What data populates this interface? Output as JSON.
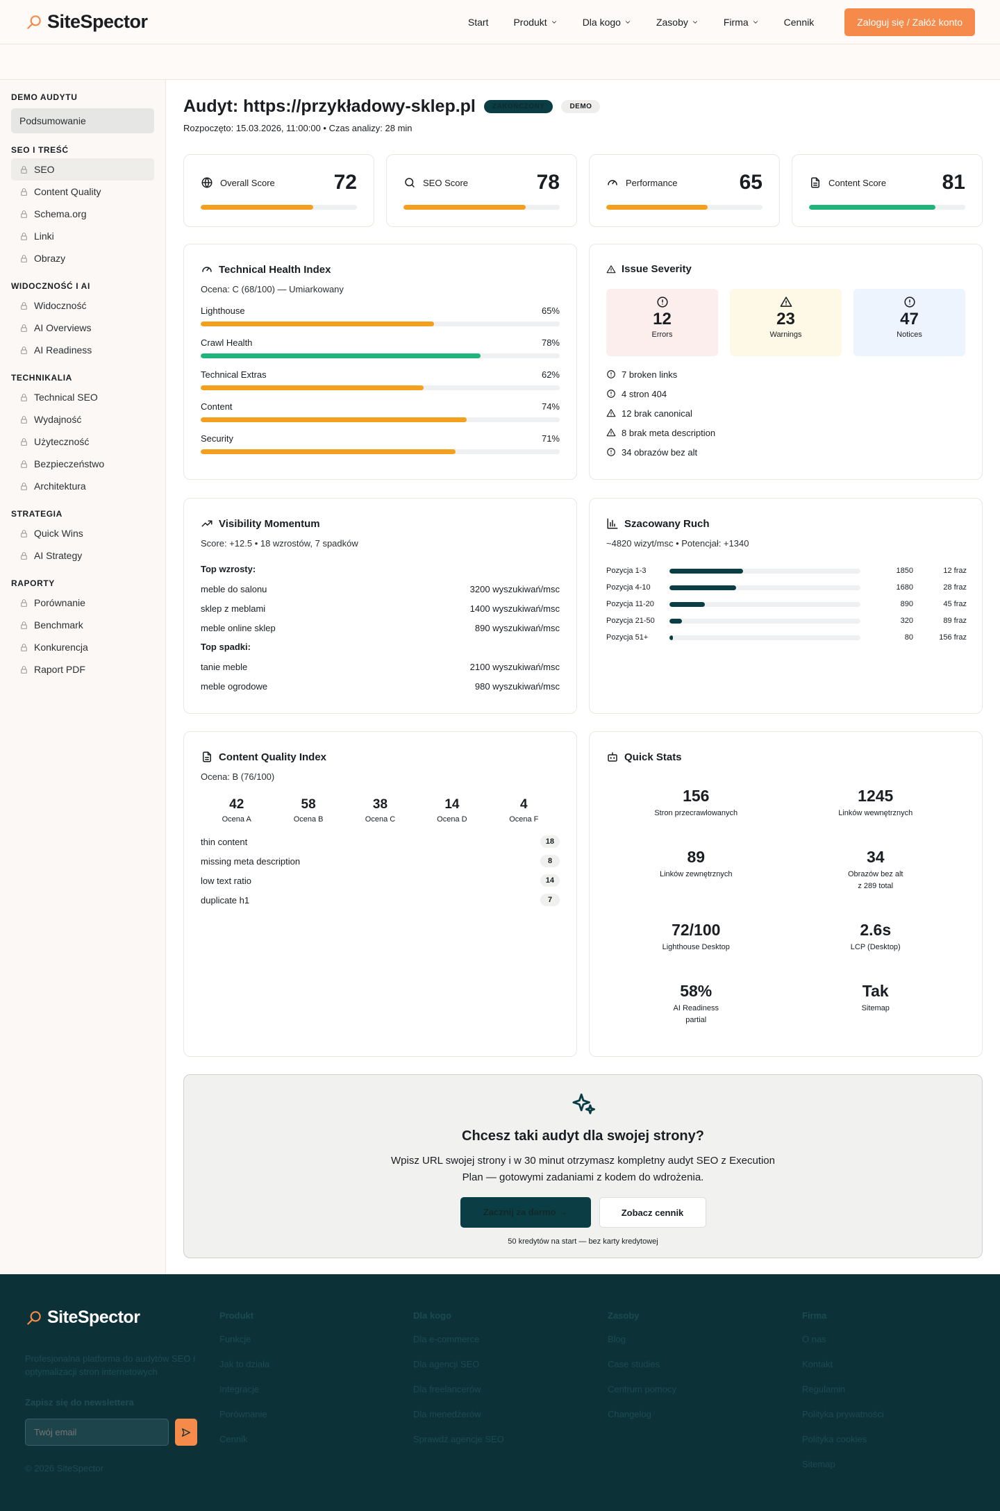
{
  "header": {
    "logo": "SiteSpector",
    "nav": [
      {
        "label": "Start"
      },
      {
        "label": "Produkt",
        "dropdown": true
      },
      {
        "label": "Dla kogo",
        "dropdown": true
      },
      {
        "label": "Zasoby",
        "dropdown": true
      },
      {
        "label": "Firma",
        "dropdown": true
      },
      {
        "label": "Cennik"
      }
    ],
    "cta": "Zaloguj się / Załóż konto"
  },
  "sidebar": {
    "groups": [
      {
        "title": "DEMO AUDYTU",
        "items": [
          {
            "label": "Podsumowanie",
            "active": true
          }
        ]
      },
      {
        "title": "SEO I TREŚĆ",
        "items": [
          {
            "label": "SEO",
            "locked": true,
            "highlighted": true
          },
          {
            "label": "Content Quality",
            "locked": true
          },
          {
            "label": "Schema.org",
            "locked": true
          },
          {
            "label": "Linki",
            "locked": true
          },
          {
            "label": "Obrazy",
            "locked": true
          }
        ]
      },
      {
        "title": "WIDOCZNOŚĆ I AI",
        "items": [
          {
            "label": "Widoczność",
            "locked": true
          },
          {
            "label": "AI Overviews",
            "locked": true
          },
          {
            "label": "AI Readiness",
            "locked": true
          }
        ]
      },
      {
        "title": "TECHNIKALIA",
        "items": [
          {
            "label": "Technical SEO",
            "locked": true
          },
          {
            "label": "Wydajność",
            "locked": true
          },
          {
            "label": "Użyteczność",
            "locked": true
          },
          {
            "label": "Bezpieczeństwo",
            "locked": true
          },
          {
            "label": "Architektura",
            "locked": true
          }
        ]
      },
      {
        "title": "STRATEGIA",
        "items": [
          {
            "label": "Quick Wins",
            "locked": true
          },
          {
            "label": "AI Strategy",
            "locked": true
          }
        ]
      },
      {
        "title": "RAPORTY",
        "items": [
          {
            "label": "Porównanie",
            "locked": true
          },
          {
            "label": "Benchmark",
            "locked": true
          },
          {
            "label": "Konkurencja",
            "locked": true
          },
          {
            "label": "Raport PDF",
            "locked": true
          }
        ]
      }
    ]
  },
  "audit": {
    "title": "Audyt: https://przykładowy-sklep.pl",
    "badges": [
      "ZAKOŃCZONY",
      "DEMO"
    ],
    "meta": "Rozpoczęto: 15.03.2026, 11:00:00 • Czas analizy: 28 min"
  },
  "scores": [
    {
      "label": "Overall Score",
      "value": 72,
      "color": "#f3a01f"
    },
    {
      "label": "SEO Score",
      "value": 78,
      "color": "#f3a01f"
    },
    {
      "label": "Performance",
      "value": 65,
      "color": "#f3a01f"
    },
    {
      "label": "Content Score",
      "value": 81,
      "color": "#1fb57a"
    }
  ],
  "health": {
    "title": "Technical Health Index",
    "grade": "Ocena: C (68/100) — Umiarkowany",
    "rows": [
      {
        "label": "Lighthouse",
        "value": 65,
        "value_label": "65%",
        "color": "#f3a01f"
      },
      {
        "label": "Crawl Health",
        "value": 78,
        "value_label": "78%",
        "color": "#1fb57a"
      },
      {
        "label": "Technical Extras",
        "value": 62,
        "value_label": "62%",
        "color": "#f3a01f"
      },
      {
        "label": "Content",
        "value": 74,
        "value_label": "74%",
        "color": "#f3a01f"
      },
      {
        "label": "Security",
        "value": 71,
        "value_label": "71%",
        "color": "#f3a01f"
      }
    ]
  },
  "severity": {
    "title": "Issue Severity",
    "counts": [
      {
        "value": 12,
        "label": "Errors"
      },
      {
        "value": 23,
        "label": "Warnings"
      },
      {
        "value": 47,
        "label": "Notices"
      }
    ],
    "issues": [
      "7 broken links",
      "4 stron 404",
      "12 brak canonical",
      "8 brak meta description",
      "34 obrazów bez alt"
    ]
  },
  "momentum": {
    "title": "Visibility Momentum",
    "score": "Score: +12.5 • 18 wzrostów, 7 spadków",
    "up_title": "Top wzrosty:",
    "up": [
      {
        "term": "meble do salonu",
        "volume": "3200 wyszukiwań/msc"
      },
      {
        "term": "sklep z meblami",
        "volume": "1400 wyszukiwań/msc"
      },
      {
        "term": "meble online sklep",
        "volume": "890 wyszukiwań/msc"
      }
    ],
    "down_title": "Top spadki:",
    "down": [
      {
        "term": "tanie meble",
        "volume": "2100 wyszukiwań/msc"
      },
      {
        "term": "meble ogrodowe",
        "volume": "980 wyszukiwań/msc"
      }
    ]
  },
  "traffic": {
    "title": "Szacowany Ruch",
    "summary": "~4820 wizyt/msc • Potencjał: +1340",
    "rows": [
      {
        "label": "Pozycja 1-3",
        "visits": 1850,
        "phrases": "12 fraz"
      },
      {
        "label": "Pozycja 4-10",
        "visits": 1680,
        "phrases": "28 fraz"
      },
      {
        "label": "Pozycja 11-20",
        "visits": 890,
        "phrases": "45 fraz"
      },
      {
        "label": "Pozycja 21-50",
        "visits": 320,
        "phrases": "89 fraz"
      },
      {
        "label": "Pozycja 51+",
        "visits": 80,
        "phrases": "156 fraz"
      }
    ]
  },
  "content": {
    "title": "Content Quality Index",
    "grade": "Ocena: B (76/100)",
    "grades": [
      {
        "value": 42,
        "label": "Ocena A"
      },
      {
        "value": 58,
        "label": "Ocena B"
      },
      {
        "value": 38,
        "label": "Ocena C"
      },
      {
        "value": 14,
        "label": "Ocena D"
      },
      {
        "value": 4,
        "label": "Ocena F"
      }
    ],
    "issues": [
      {
        "label": "thin content",
        "count": 18
      },
      {
        "label": "missing meta description",
        "count": 8
      },
      {
        "label": "low text ratio",
        "count": 14
      },
      {
        "label": "duplicate h1",
        "count": 7
      }
    ]
  },
  "quick": {
    "title": "Quick Stats",
    "stats": [
      {
        "value": 156,
        "label": [
          "Stron przecrawlowanych"
        ]
      },
      {
        "value": 1245,
        "label": [
          "Linków wewnętrznych"
        ]
      },
      {
        "value": 89,
        "label": [
          "Linków zewnętrznych"
        ]
      },
      {
        "value": 34,
        "label": [
          "Obrazów bez alt",
          "z 289 total"
        ]
      },
      {
        "value": "72/100",
        "label": [
          "Lighthouse Desktop"
        ]
      },
      {
        "value": "2.6s",
        "label": [
          "LCP (Desktop)"
        ]
      },
      {
        "value": "58%",
        "label": [
          "AI Readiness",
          "partial"
        ]
      },
      {
        "value": "Tak",
        "label": [
          "Sitemap"
        ]
      }
    ]
  },
  "cta": {
    "title": "Chcesz taki audyt dla swojej strony?",
    "text": "Wpisz URL swojej strony i w 30 minut otrzymasz kompletny audyt SEO z Execution Plan — gotowymi zadaniami z kodem do wdrożenia.",
    "primary": "Zacznij za darmo →",
    "secondary": "Zobacz cennik",
    "note": "50 kredytów na start — bez karty kredytowej"
  },
  "footer": {
    "logo": "SiteSpector",
    "tagline": "Profesjonalna platforma do audytów SEO i optymalizacji stron internetowych",
    "newsletter": "Zapisz się do newslettera",
    "placeholder": "Twój email",
    "copyright": "© 2026 SiteSpector",
    "columns": [
      {
        "title": "Produkt",
        "links": [
          "Funkcje",
          "Jak to działa",
          "Integracje",
          "Porównanie",
          "Cennik"
        ]
      },
      {
        "title": "Dla kogo",
        "links": [
          "Dla e-commerce",
          "Dla agencji SEO",
          "Dla freelancerów",
          "Dla menedżerów",
          "Sprawdź agencje SEO"
        ]
      },
      {
        "title": "Zasoby",
        "links": [
          "Blog",
          "Case studies",
          "Centrum pomocy",
          "Changelog"
        ]
      },
      {
        "title": "Firma",
        "links": [
          "O nas",
          "Kontakt",
          "Regulamin",
          "Polityka prywatności",
          "Polityka cookies",
          "Sitemap"
        ]
      }
    ]
  }
}
